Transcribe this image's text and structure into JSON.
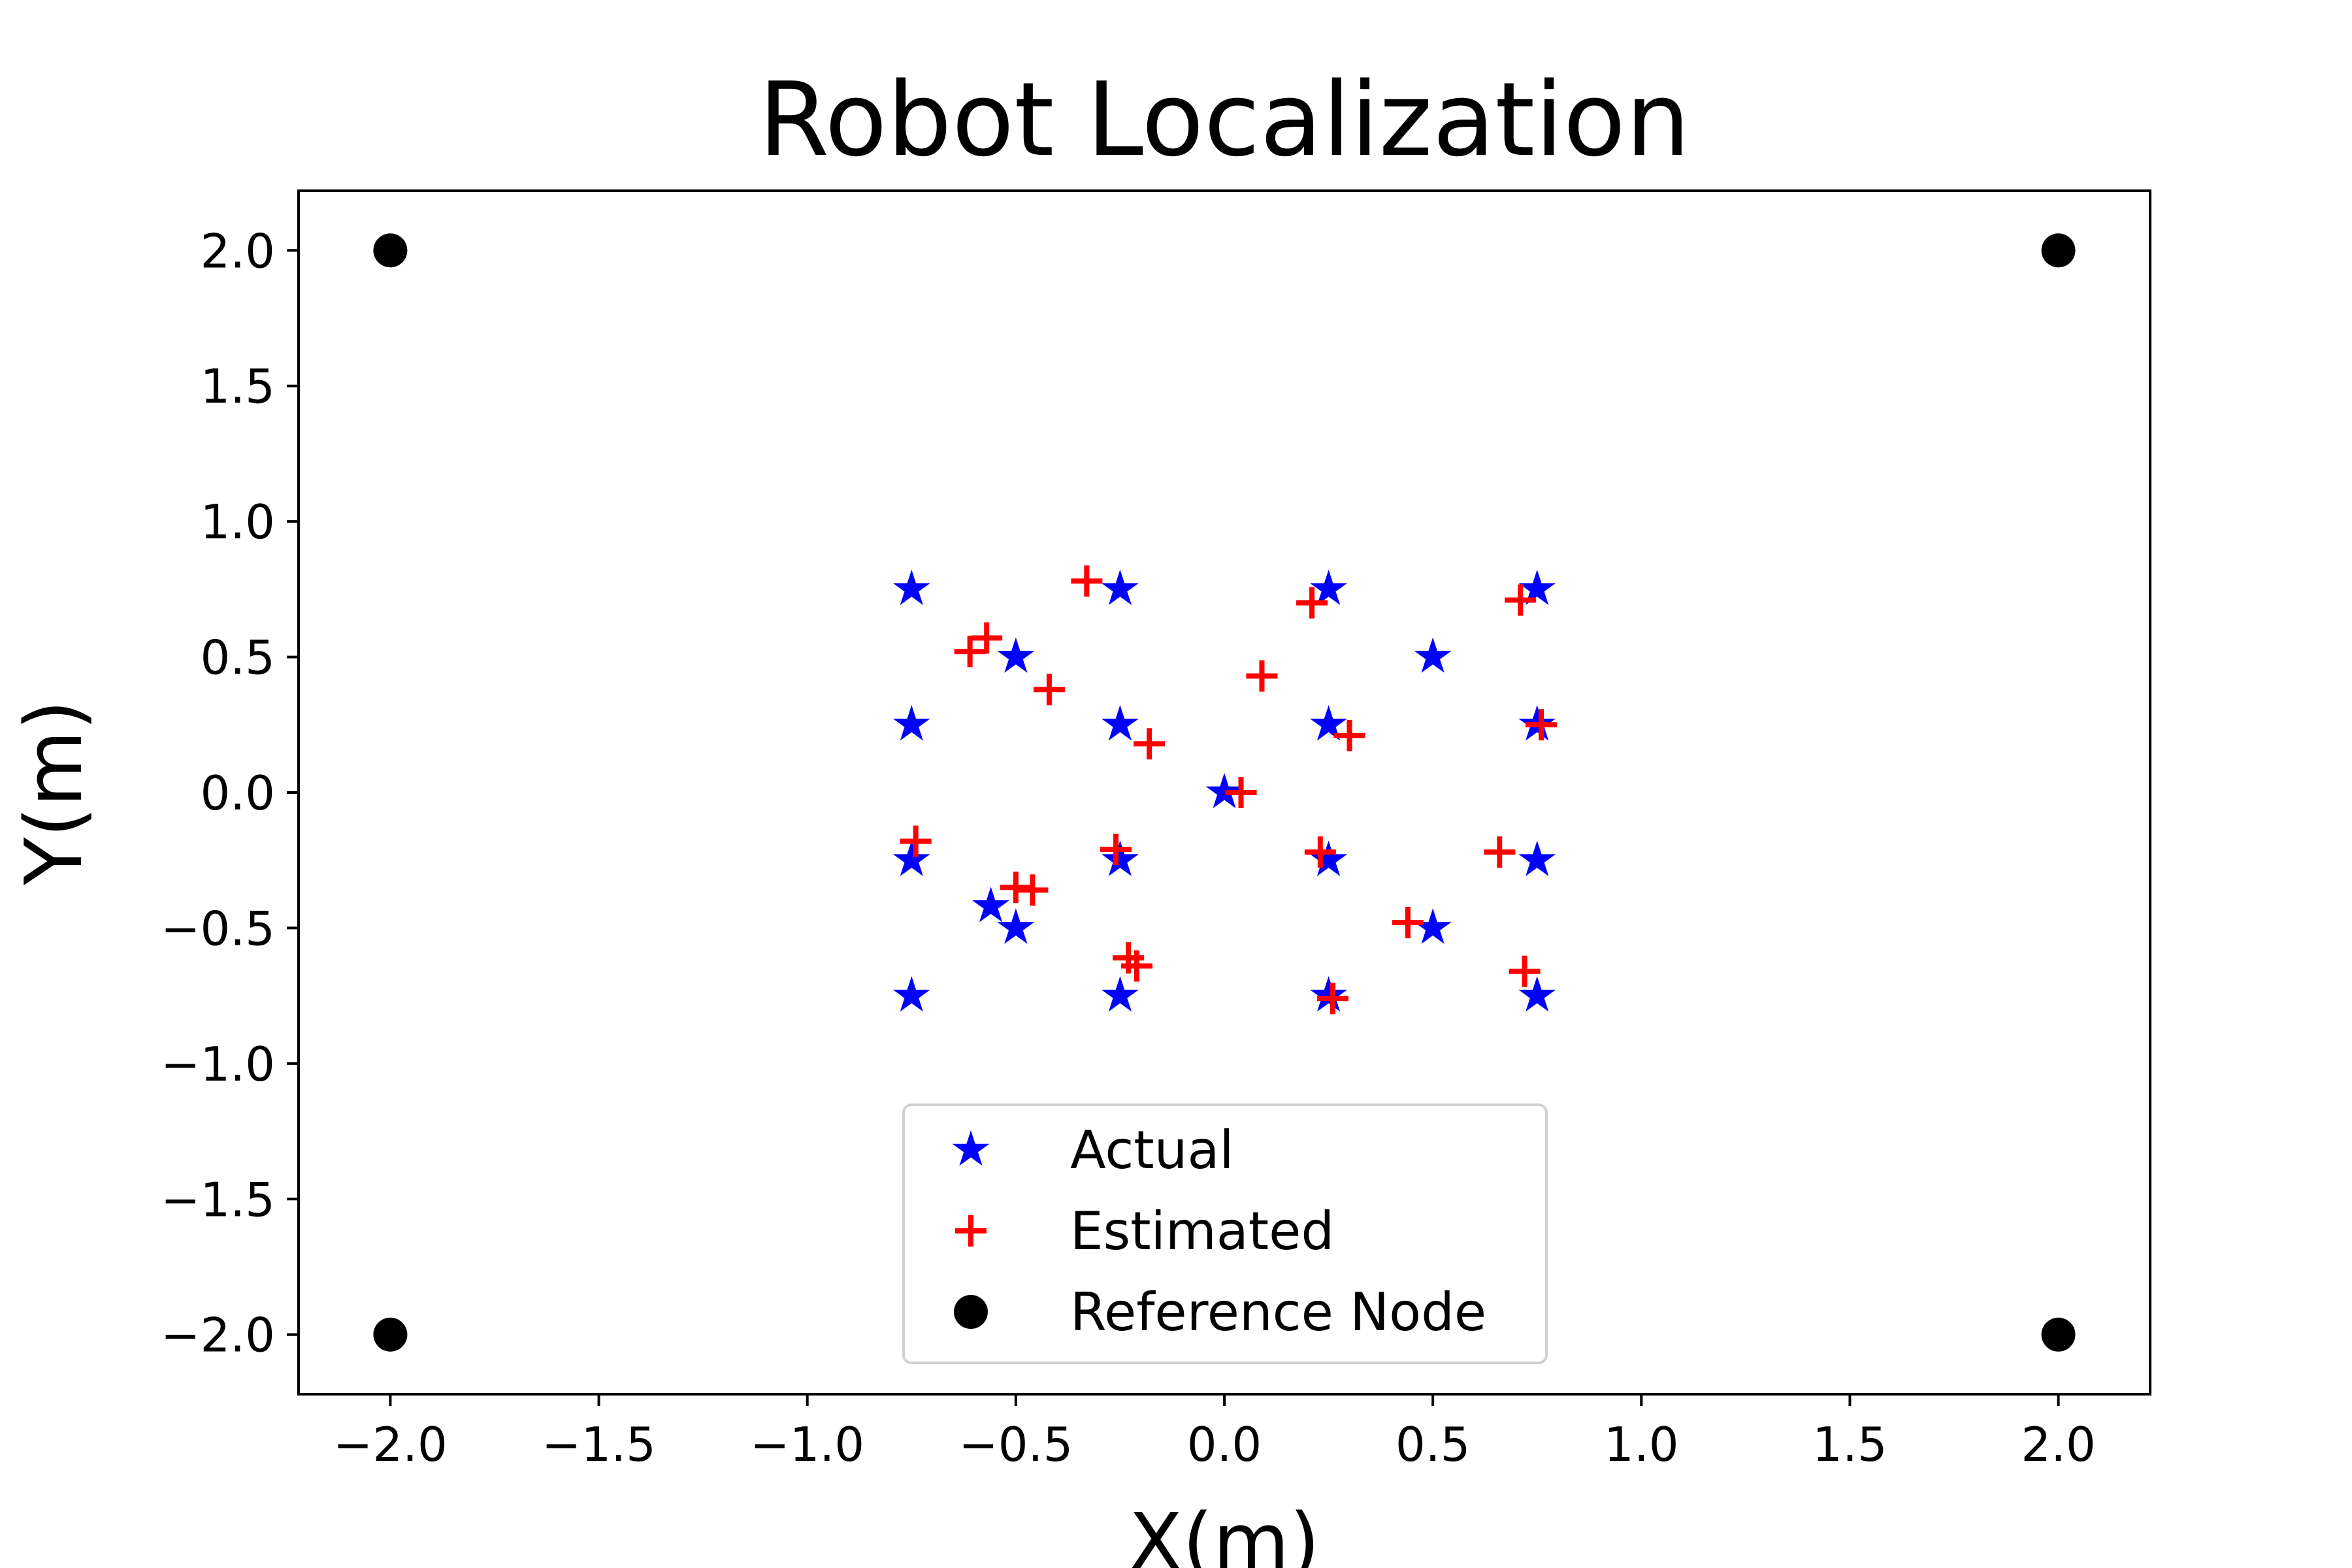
{
  "chart_data": {
    "type": "scatter",
    "title": "Robot Localization",
    "xlabel": "X(m)",
    "ylabel": "Y(m)",
    "xlim": [
      -2.22,
      2.22
    ],
    "ylim": [
      -2.22,
      2.22
    ],
    "xticks": [
      -2.0,
      -1.5,
      -1.0,
      -0.5,
      0.0,
      0.5,
      1.0,
      1.5,
      2.0
    ],
    "yticks": [
      -2.0,
      -1.5,
      -1.0,
      -0.5,
      0.0,
      0.5,
      1.0,
      1.5,
      2.0
    ],
    "xtick_labels": [
      "−2.0",
      "−1.5",
      "−1.0",
      "−0.5",
      "0.0",
      "0.5",
      "1.0",
      "1.5",
      "2.0"
    ],
    "ytick_labels": [
      "−2.0",
      "−1.5",
      "−1.0",
      "−0.5",
      "0.0",
      "0.5",
      "1.0",
      "1.5",
      "2.0"
    ],
    "grid": false,
    "legend_position": "lower-center",
    "series": [
      {
        "name": "Actual",
        "marker": "star",
        "color": "#0000ff",
        "points": [
          [
            -0.75,
            0.75
          ],
          [
            -0.25,
            0.75
          ],
          [
            0.25,
            0.75
          ],
          [
            0.75,
            0.75
          ],
          [
            -0.5,
            0.5
          ],
          [
            0.5,
            0.5
          ],
          [
            -0.75,
            0.25
          ],
          [
            -0.25,
            0.25
          ],
          [
            0.25,
            0.25
          ],
          [
            0.75,
            0.25
          ],
          [
            0.0,
            0.0
          ],
          [
            -0.75,
            -0.25
          ],
          [
            -0.25,
            -0.25
          ],
          [
            0.25,
            -0.25
          ],
          [
            0.75,
            -0.25
          ],
          [
            -0.56,
            -0.42
          ],
          [
            -0.5,
            -0.5
          ],
          [
            0.5,
            -0.5
          ],
          [
            -0.75,
            -0.75
          ],
          [
            -0.25,
            -0.75
          ],
          [
            0.25,
            -0.75
          ],
          [
            0.75,
            -0.75
          ]
        ]
      },
      {
        "name": "Estimated",
        "marker": "plus",
        "color": "#ff0000",
        "points": [
          [
            -0.33,
            0.78
          ],
          [
            0.21,
            0.7
          ],
          [
            0.71,
            0.71
          ],
          [
            -0.57,
            0.57
          ],
          [
            -0.61,
            0.52
          ],
          [
            -0.42,
            0.38
          ],
          [
            0.09,
            0.43
          ],
          [
            -0.18,
            0.18
          ],
          [
            0.3,
            0.21
          ],
          [
            0.76,
            0.25
          ],
          [
            0.04,
            0.0
          ],
          [
            -0.74,
            -0.18
          ],
          [
            -0.26,
            -0.21
          ],
          [
            0.23,
            -0.22
          ],
          [
            0.66,
            -0.22
          ],
          [
            -0.5,
            -0.35
          ],
          [
            -0.46,
            -0.36
          ],
          [
            0.44,
            -0.48
          ],
          [
            -0.23,
            -0.61
          ],
          [
            -0.21,
            -0.64
          ],
          [
            0.72,
            -0.66
          ],
          [
            0.26,
            -0.76
          ]
        ]
      },
      {
        "name": "Reference Node",
        "marker": "circle",
        "color": "#000000",
        "points": [
          [
            -2.0,
            2.0
          ],
          [
            2.0,
            2.0
          ],
          [
            -2.0,
            -2.0
          ],
          [
            2.0,
            -2.0
          ]
        ]
      }
    ]
  }
}
